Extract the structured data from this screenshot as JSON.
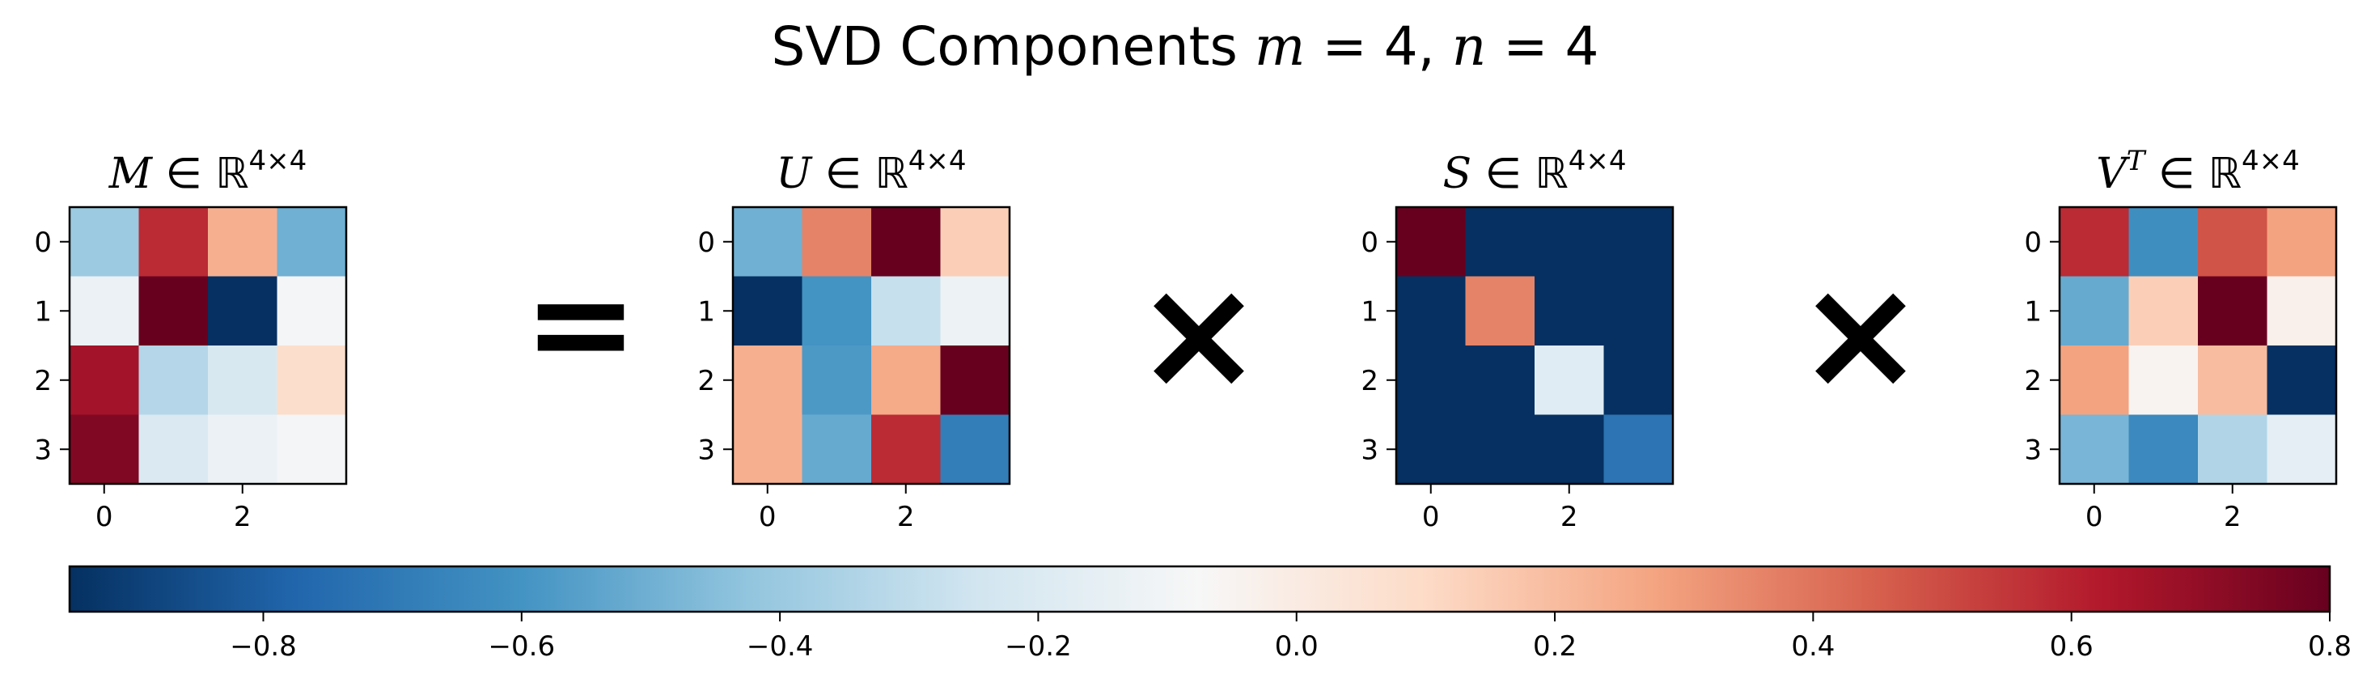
{
  "chart_data": {
    "type": "heatmap",
    "title": {
      "prefix": "SVD Components ",
      "m_label": "m",
      "m_value": "4",
      "sep": ",",
      "n_label": "n",
      "n_value": "4"
    },
    "colormap": "RdBu_r",
    "colorbar": {
      "vmin": -0.95,
      "vmax": 0.8,
      "ticks": [
        -0.8,
        -0.6,
        -0.4,
        -0.2,
        0.0,
        0.2,
        0.4,
        0.6,
        0.8
      ],
      "tick_labels": [
        "−0.8",
        "−0.6",
        "−0.4",
        "−0.2",
        "0.0",
        "0.2",
        "0.4",
        "0.6",
        "0.8"
      ]
    },
    "operators": [
      "=",
      "×",
      "×"
    ],
    "matrices": [
      {
        "name": "M",
        "sup": "",
        "domain": "ℝ",
        "dims": "4×4",
        "x_ticks": [
          "0",
          "2"
        ],
        "y_ticks": [
          "0",
          "1",
          "2",
          "3"
        ],
        "values": [
          [
            -0.4,
            0.58,
            0.24,
            -0.5
          ],
          [
            -0.13,
            0.8,
            -0.95,
            -0.09
          ],
          [
            0.66,
            -0.33,
            -0.22,
            0.08
          ],
          [
            0.74,
            -0.21,
            -0.13,
            -0.09
          ]
        ]
      },
      {
        "name": "U",
        "sup": "",
        "domain": "ℝ",
        "dims": "4×4",
        "x_ticks": [
          "0",
          "2"
        ],
        "y_ticks": [
          "0",
          "1",
          "2",
          "3"
        ],
        "values": [
          [
            -0.5,
            0.36,
            0.8,
            0.14
          ],
          [
            -0.95,
            -0.6,
            -0.28,
            -0.12
          ],
          [
            0.24,
            -0.58,
            0.26,
            0.8
          ],
          [
            0.24,
            -0.52,
            0.58,
            -0.68
          ]
        ]
      },
      {
        "name": "S",
        "sup": "",
        "domain": "ℝ",
        "dims": "4×4",
        "x_ticks": [
          "0",
          "2"
        ],
        "y_ticks": [
          "0",
          "1",
          "2",
          "3"
        ],
        "values": [
          [
            0.8,
            -0.95,
            -0.95,
            -0.95
          ],
          [
            -0.95,
            0.36,
            -0.95,
            -0.95
          ],
          [
            -0.95,
            -0.95,
            -0.18,
            -0.95
          ],
          [
            -0.95,
            -0.95,
            -0.95,
            -0.72
          ]
        ]
      },
      {
        "name": "V",
        "sup": "T",
        "domain": "ℝ",
        "dims": "4×4",
        "x_ticks": [
          "0",
          "2"
        ],
        "y_ticks": [
          "0",
          "1",
          "2",
          "3"
        ],
        "values": [
          [
            0.58,
            -0.62,
            0.48,
            0.28
          ],
          [
            -0.52,
            0.14,
            0.8,
            -0.03
          ],
          [
            0.28,
            -0.05,
            0.2,
            -0.95
          ],
          [
            -0.48,
            -0.64,
            -0.34,
            -0.16
          ]
        ]
      }
    ]
  }
}
